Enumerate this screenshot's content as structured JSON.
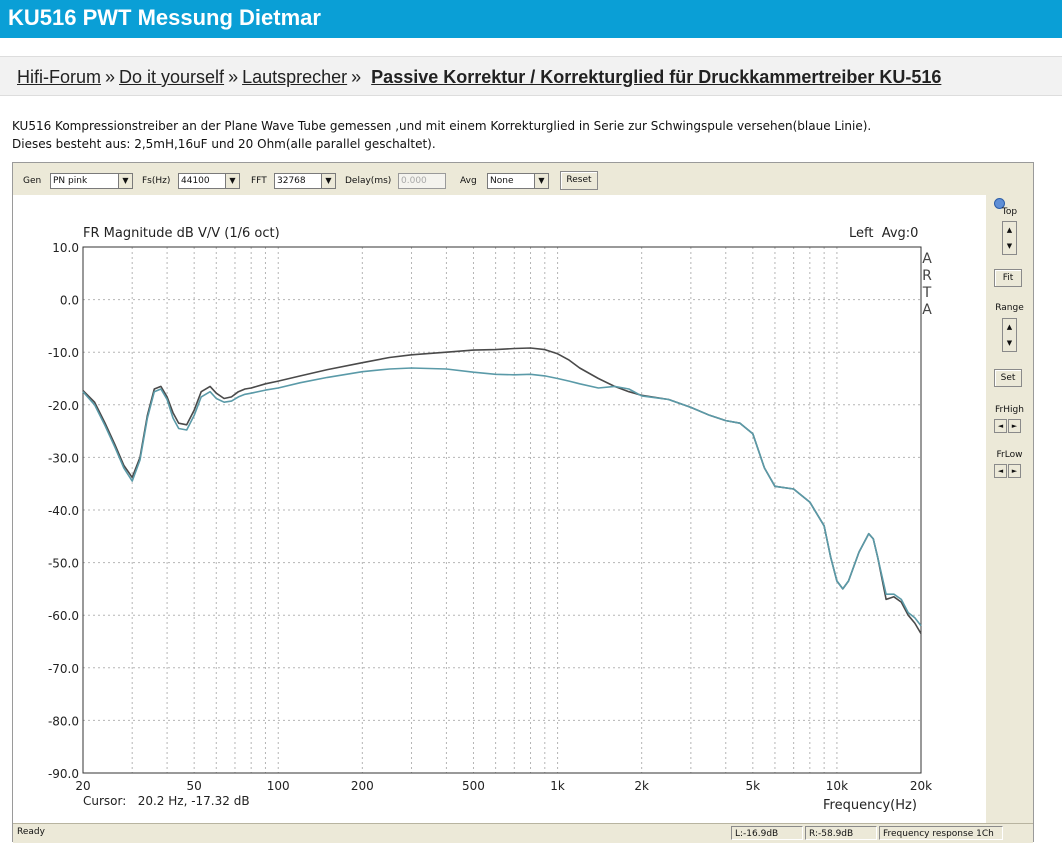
{
  "page": {
    "title": "KU516 PWT Messung Dietmar"
  },
  "breadcrumb": {
    "items": [
      "Hifi-Forum",
      "Do it yourself",
      "Lautsprecher"
    ],
    "separator": "»",
    "current": "Passive Korrektur / Korrekturglied für Druckkammertreiber KU-516"
  },
  "post": {
    "lines": [
      "KU516 Kompressionstreiber an der Plane Wave Tube  gemessen ,und mit einem Korrekturglied in Serie zur Schwingspule versehen(blaue Linie).",
      "Dieses besteht aus: 2,5mH,16uF und 20 Ohm(alle parallel geschaltet)."
    ]
  },
  "toolbar": {
    "gen_label": "Gen",
    "gen_value": "PN pink",
    "fs_label": "Fs(Hz)",
    "fs_value": "44100",
    "fft_label": "FFT",
    "fft_value": "32768",
    "delay_label": "Delay(ms)",
    "delay_value": "0.000",
    "avg_label": "Avg",
    "avg_value": "None",
    "reset_label": "Reset"
  },
  "right_panel": {
    "top_label": "Top",
    "fit_label": "Fit",
    "range_label": "Range",
    "set_label": "Set",
    "frhigh_label": "FrHigh",
    "frlow_label": "FrLow"
  },
  "status": {
    "ready": "Ready",
    "left": "L:-16.9dB",
    "right": "R:-58.9dB",
    "mode": "Frequency response 1Ch"
  },
  "chart_data": {
    "type": "line",
    "title": "FR Magnitude dB V/V (1/6 oct)",
    "channel_info": "Left  Avg:0",
    "watermark": "ARTA",
    "xlabel": "Frequency(Hz)",
    "ylabel": "",
    "cursor_text": "Cursor:   20.2 Hz, -17.32 dB",
    "xscale": "log",
    "xlim": [
      20,
      20000
    ],
    "ylim": [
      -90,
      10
    ],
    "grid": true,
    "x_ticks": [
      {
        "value": 20,
        "label": "20"
      },
      {
        "value": 50,
        "label": "50"
      },
      {
        "value": 100,
        "label": "100"
      },
      {
        "value": 200,
        "label": "200"
      },
      {
        "value": 500,
        "label": "500"
      },
      {
        "value": 1000,
        "label": "1k"
      },
      {
        "value": 2000,
        "label": "2k"
      },
      {
        "value": 5000,
        "label": "5k"
      },
      {
        "value": 10000,
        "label": "10k"
      },
      {
        "value": 20000,
        "label": "20k"
      }
    ],
    "y_ticks": [
      {
        "value": 10,
        "label": "10.0"
      },
      {
        "value": 0,
        "label": "0.0"
      },
      {
        "value": -10,
        "label": "-10.0"
      },
      {
        "value": -20,
        "label": "-20.0"
      },
      {
        "value": -30,
        "label": "-30.0"
      },
      {
        "value": -40,
        "label": "-40.0"
      },
      {
        "value": -50,
        "label": "-50.0"
      },
      {
        "value": -60,
        "label": "-60.0"
      },
      {
        "value": -70,
        "label": "-70.0"
      },
      {
        "value": -80,
        "label": "-80.0"
      },
      {
        "value": -90,
        "label": "-90.0"
      }
    ],
    "series": [
      {
        "color": "#4a4a4a",
        "x": [
          20,
          22,
          24,
          26,
          28,
          30,
          32,
          34,
          36,
          38,
          40,
          42,
          44,
          47,
          50,
          53,
          57,
          60,
          64,
          68,
          72,
          76,
          80,
          90,
          100,
          120,
          150,
          200,
          250,
          300,
          400,
          500,
          600,
          700,
          800,
          900,
          1000,
          1100,
          1200,
          1400,
          1600,
          1800,
          2000,
          2500,
          3000,
          3500,
          4000,
          4500,
          5000,
          5500,
          6000,
          7000,
          8000,
          9000,
          9500,
          10000,
          10500,
          11000,
          12000,
          13000,
          13500,
          14000,
          15000,
          16000,
          17000,
          18000,
          19000,
          20000
        ],
        "y": [
          -17.3,
          -19.5,
          -23.5,
          -27.5,
          -31.5,
          -33.8,
          -30.0,
          -22.0,
          -17.0,
          -16.5,
          -18.5,
          -21.5,
          -23.5,
          -23.8,
          -21.0,
          -17.5,
          -16.5,
          -17.8,
          -18.8,
          -18.5,
          -17.5,
          -17.0,
          -16.8,
          -16.0,
          -15.5,
          -14.5,
          -13.3,
          -12.0,
          -11.0,
          -10.5,
          -10.0,
          -9.6,
          -9.5,
          -9.3,
          -9.2,
          -9.5,
          -10.3,
          -11.5,
          -13.0,
          -15.0,
          -16.5,
          -17.5,
          -18.2,
          -19.0,
          -20.5,
          -22.0,
          -23.0,
          -23.5,
          -25.5,
          -32.0,
          -35.5,
          -36.0,
          -38.5,
          -43.0,
          -49.0,
          -53.5,
          -55.0,
          -53.5,
          -48.0,
          -44.5,
          -45.5,
          -49.0,
          -57.0,
          -56.5,
          -57.5,
          -60.0,
          -61.5,
          -63.5
        ]
      },
      {
        "color": "#5a9aa8",
        "x": [
          20,
          22,
          24,
          26,
          28,
          30,
          32,
          34,
          36,
          38,
          40,
          42,
          44,
          47,
          50,
          53,
          57,
          60,
          64,
          68,
          72,
          76,
          80,
          90,
          100,
          120,
          150,
          200,
          250,
          300,
          400,
          500,
          600,
          700,
          800,
          900,
          1000,
          1100,
          1200,
          1400,
          1600,
          1800,
          2000,
          2500,
          3000,
          3500,
          4000,
          4500,
          5000,
          5500,
          6000,
          7000,
          8000,
          9000,
          9500,
          10000,
          10500,
          11000,
          12000,
          13000,
          13500,
          14000,
          15000,
          16000,
          17000,
          18000,
          19000,
          20000
        ],
        "y": [
          -17.5,
          -20.0,
          -24.0,
          -28.0,
          -32.0,
          -34.5,
          -30.5,
          -22.5,
          -17.5,
          -17.0,
          -19.0,
          -22.5,
          -24.5,
          -24.8,
          -22.0,
          -18.5,
          -17.5,
          -18.8,
          -19.5,
          -19.3,
          -18.5,
          -18.0,
          -17.8,
          -17.2,
          -16.8,
          -15.8,
          -14.8,
          -13.7,
          -13.2,
          -13.0,
          -13.2,
          -13.8,
          -14.2,
          -14.3,
          -14.2,
          -14.5,
          -15.0,
          -15.5,
          -16.0,
          -16.8,
          -16.5,
          -17.0,
          -18.3,
          -19.0,
          -20.5,
          -22.0,
          -23.0,
          -23.5,
          -25.5,
          -32.0,
          -35.5,
          -36.0,
          -38.5,
          -43.0,
          -49.0,
          -53.5,
          -55.0,
          -53.5,
          -48.0,
          -44.5,
          -45.5,
          -49.0,
          -56.0,
          -56.0,
          -57.0,
          -59.5,
          -60.5,
          -62.0
        ]
      }
    ]
  }
}
